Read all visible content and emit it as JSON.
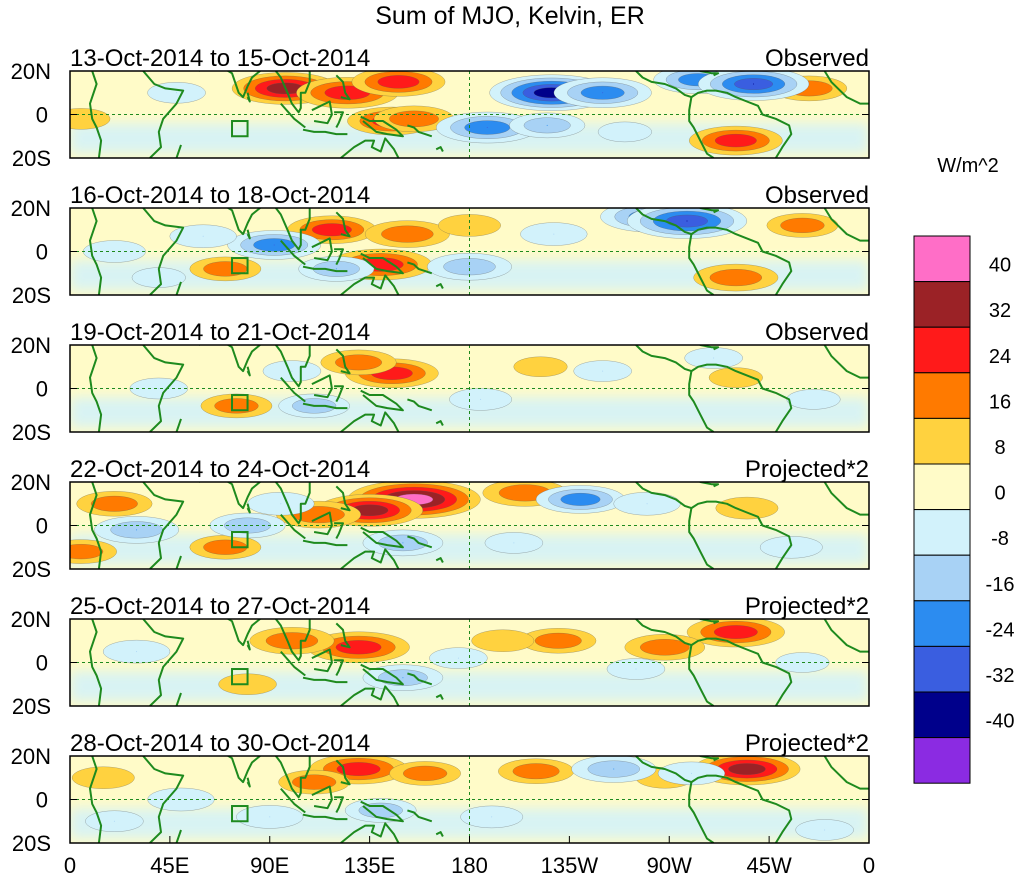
{
  "chart_data": {
    "type": "heatmap",
    "title": "Sum of MJO, Kelvin, ER",
    "units": "W/m^2",
    "x_ticks": [
      "0",
      "45E",
      "90E",
      "135E",
      "180",
      "135W",
      "90W",
      "45W",
      "0"
    ],
    "x_range_deg_east": [
      0,
      360
    ],
    "y_ticks": [
      "20N",
      "0",
      "20S"
    ],
    "y_range_deg": [
      -20,
      20
    ],
    "colorbar": {
      "levels": [
        "40",
        "32",
        "24",
        "16",
        "8",
        "0",
        "-8",
        "-16",
        "-24",
        "-32",
        "-40"
      ],
      "colors": [
        "#ff6ec7",
        "#9b2226",
        "#ff1a1a",
        "#ff7a00",
        "#ffd23f",
        "#fffbc8",
        "#d2f2fb",
        "#a8d2f5",
        "#2c8cf0",
        "#3a5ee0",
        "#00008b",
        "#8b2be2"
      ]
    },
    "panels": [
      {
        "period": "13-Oct-2014 to 15-Oct-2014",
        "label": "Observed",
        "anomalies": [
          {
            "lon": 97,
            "lat": 12,
            "value": 32
          },
          {
            "lon": 125,
            "lat": 10,
            "value": 30
          },
          {
            "lon": 148,
            "lat": 15,
            "value": 26
          },
          {
            "lon": 145,
            "lat": -3,
            "value": 24
          },
          {
            "lon": 155,
            "lat": -2,
            "value": 20
          },
          {
            "lon": 300,
            "lat": -12,
            "value": 26
          },
          {
            "lon": 333,
            "lat": 12,
            "value": 18
          },
          {
            "lon": 5,
            "lat": -2,
            "value": 10
          },
          {
            "lon": 217,
            "lat": 10,
            "value": -40
          },
          {
            "lon": 240,
            "lat": 10,
            "value": -28
          },
          {
            "lon": 283,
            "lat": 16,
            "value": -24
          },
          {
            "lon": 308,
            "lat": 14,
            "value": -34
          },
          {
            "lon": 48,
            "lat": 10,
            "value": -10
          },
          {
            "lon": 188,
            "lat": -6,
            "value": -30
          },
          {
            "lon": 215,
            "lat": -5,
            "value": -18
          },
          {
            "lon": 250,
            "lat": -8,
            "value": -8
          }
        ]
      },
      {
        "period": "16-Oct-2014 to 18-Oct-2014",
        "label": "Observed",
        "anomalies": [
          {
            "lon": 118,
            "lat": 10,
            "value": 24
          },
          {
            "lon": 152,
            "lat": 8,
            "value": 22
          },
          {
            "lon": 140,
            "lat": -6,
            "value": 30
          },
          {
            "lon": 70,
            "lat": -8,
            "value": 16
          },
          {
            "lon": 300,
            "lat": -12,
            "value": 22
          },
          {
            "lon": 330,
            "lat": 12,
            "value": 16
          },
          {
            "lon": 180,
            "lat": 12,
            "value": 12
          },
          {
            "lon": 92,
            "lat": 3,
            "value": -26
          },
          {
            "lon": 60,
            "lat": 7,
            "value": -14
          },
          {
            "lon": 120,
            "lat": -8,
            "value": -18
          },
          {
            "lon": 262,
            "lat": 16,
            "value": -30
          },
          {
            "lon": 278,
            "lat": 14,
            "value": -38
          },
          {
            "lon": 180,
            "lat": -7,
            "value": -22
          },
          {
            "lon": 218,
            "lat": 8,
            "value": -14
          },
          {
            "lon": 20,
            "lat": 0,
            "value": -12
          },
          {
            "lon": 40,
            "lat": -12,
            "value": -8
          }
        ]
      },
      {
        "period": "19-Oct-2014 to 21-Oct-2014",
        "label": "Observed",
        "anomalies": [
          {
            "lon": 145,
            "lat": 7,
            "value": 26
          },
          {
            "lon": 130,
            "lat": 12,
            "value": 18
          },
          {
            "lon": 75,
            "lat": -8,
            "value": 16
          },
          {
            "lon": 212,
            "lat": 10,
            "value": 8
          },
          {
            "lon": 300,
            "lat": 5,
            "value": 8
          },
          {
            "lon": 110,
            "lat": -8,
            "value": -16
          },
          {
            "lon": 100,
            "lat": 8,
            "value": -10
          },
          {
            "lon": 185,
            "lat": -5,
            "value": -12
          },
          {
            "lon": 240,
            "lat": 8,
            "value": -10
          },
          {
            "lon": 290,
            "lat": 14,
            "value": -10
          },
          {
            "lon": 40,
            "lat": 0,
            "value": -10
          },
          {
            "lon": 335,
            "lat": -5,
            "value": -8
          }
        ]
      },
      {
        "period": "22-Oct-2014 to 24-Oct-2014",
        "label": "Projected*2",
        "anomalies": [
          {
            "lon": 155,
            "lat": 12,
            "value": 44
          },
          {
            "lon": 135,
            "lat": 7,
            "value": 32
          },
          {
            "lon": 112,
            "lat": 5,
            "value": 22
          },
          {
            "lon": 205,
            "lat": 15,
            "value": 22
          },
          {
            "lon": 20,
            "lat": 10,
            "value": 18
          },
          {
            "lon": 70,
            "lat": -10,
            "value": 16
          },
          {
            "lon": 5,
            "lat": -12,
            "value": 16
          },
          {
            "lon": 305,
            "lat": 8,
            "value": 12
          },
          {
            "lon": 230,
            "lat": 12,
            "value": -24
          },
          {
            "lon": 260,
            "lat": 10,
            "value": -14
          },
          {
            "lon": 30,
            "lat": -2,
            "value": -22
          },
          {
            "lon": 80,
            "lat": 0,
            "value": -18
          },
          {
            "lon": 95,
            "lat": 10,
            "value": -14
          },
          {
            "lon": 150,
            "lat": -8,
            "value": -20
          },
          {
            "lon": 325,
            "lat": -10,
            "value": -12
          },
          {
            "lon": 200,
            "lat": -8,
            "value": -10
          }
        ]
      },
      {
        "period": "25-Oct-2014 to 27-Oct-2014",
        "label": "Projected*2",
        "anomalies": [
          {
            "lon": 130,
            "lat": 7,
            "value": 30
          },
          {
            "lon": 100,
            "lat": 10,
            "value": 22
          },
          {
            "lon": 220,
            "lat": 10,
            "value": 18
          },
          {
            "lon": 300,
            "lat": 14,
            "value": 28
          },
          {
            "lon": 268,
            "lat": 7,
            "value": 20
          },
          {
            "lon": 195,
            "lat": 10,
            "value": 12
          },
          {
            "lon": 80,
            "lat": -10,
            "value": 10
          },
          {
            "lon": 30,
            "lat": 5,
            "value": -14
          },
          {
            "lon": 150,
            "lat": -7,
            "value": -20
          },
          {
            "lon": 175,
            "lat": 2,
            "value": -10
          },
          {
            "lon": 255,
            "lat": -3,
            "value": -10
          },
          {
            "lon": 330,
            "lat": 0,
            "value": -8
          }
        ]
      },
      {
        "period": "28-Oct-2014 to 30-Oct-2014",
        "label": "Projected*2",
        "anomalies": [
          {
            "lon": 130,
            "lat": 14,
            "value": 28
          },
          {
            "lon": 110,
            "lat": 8,
            "value": 16
          },
          {
            "lon": 160,
            "lat": 12,
            "value": 16
          },
          {
            "lon": 210,
            "lat": 13,
            "value": 18
          },
          {
            "lon": 305,
            "lat": 14,
            "value": 32
          },
          {
            "lon": 15,
            "lat": 10,
            "value": 12
          },
          {
            "lon": 268,
            "lat": 10,
            "value": 10
          },
          {
            "lon": 245,
            "lat": 14,
            "value": -22
          },
          {
            "lon": 280,
            "lat": 12,
            "value": -14
          },
          {
            "lon": 140,
            "lat": -5,
            "value": -16
          },
          {
            "lon": 50,
            "lat": 0,
            "value": -14
          },
          {
            "lon": 90,
            "lat": -8,
            "value": -14
          },
          {
            "lon": 190,
            "lat": -8,
            "value": -12
          },
          {
            "lon": 340,
            "lat": -14,
            "value": -10
          },
          {
            "lon": 20,
            "lat": -10,
            "value": -10
          }
        ]
      }
    ]
  }
}
